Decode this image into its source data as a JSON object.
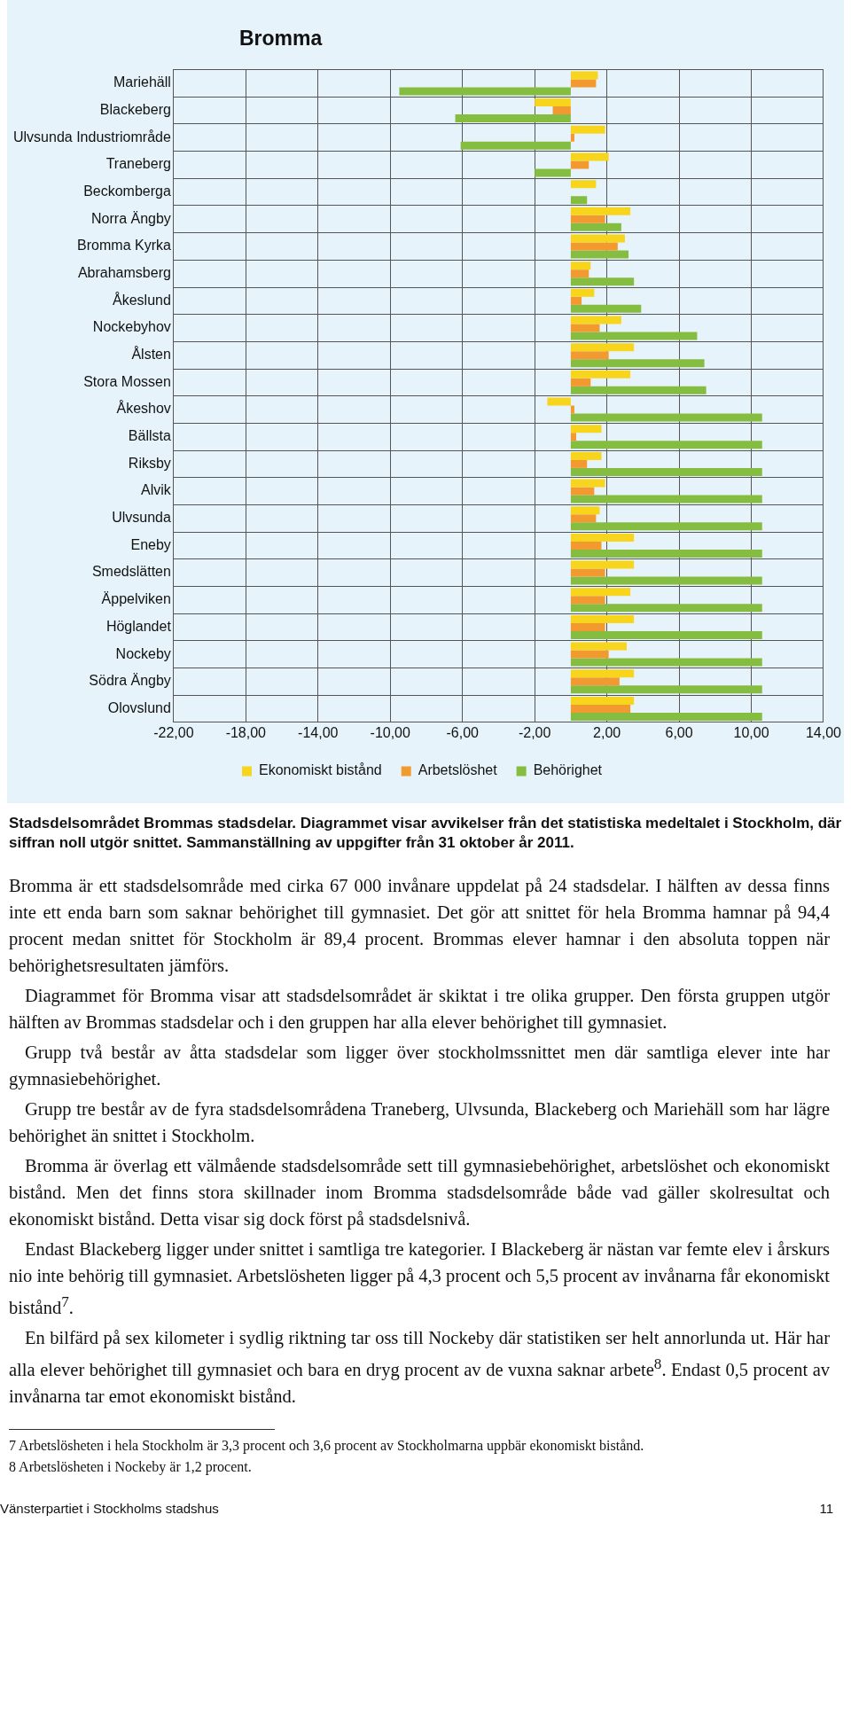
{
  "chart_data": {
    "type": "bar",
    "orientation": "horizontal",
    "title": "Bromma",
    "categories": [
      "Mariehäll",
      "Blackeberg",
      "Ulvsunda Industriområde",
      "Traneberg",
      "Beckomberga",
      "Norra Ängby",
      "Bromma Kyrka",
      "Abrahamsberg",
      "Åkeslund",
      "Nockebyhov",
      "Ålsten",
      "Stora Mossen",
      "Åkeshov",
      "Bällsta",
      "Riksby",
      "Alvik",
      "Ulvsunda",
      "Eneby",
      "Smedslätten",
      "Äppelviken",
      "Höglandet",
      "Nockeby",
      "Södra Ängby",
      "Olovslund"
    ],
    "series": [
      {
        "name": "Ekonomiskt bistånd",
        "color": "#f7d51d",
        "values": [
          1.5,
          -2.0,
          1.9,
          2.1,
          1.4,
          3.3,
          3.0,
          1.1,
          1.3,
          2.8,
          3.5,
          3.3,
          -1.3,
          1.7,
          1.7,
          1.9,
          1.6,
          3.5,
          3.5,
          3.3,
          3.5,
          3.1,
          3.5,
          3.5
        ]
      },
      {
        "name": "Arbetslöshet",
        "color": "#f29a30",
        "values": [
          1.4,
          -1.0,
          0.2,
          1.0,
          0,
          1.9,
          2.6,
          1.0,
          0.6,
          1.6,
          2.1,
          1.1,
          0.2,
          0.3,
          0.9,
          1.3,
          1.4,
          1.7,
          1.9,
          1.9,
          1.9,
          2.1,
          2.7,
          3.3
        ]
      },
      {
        "name": "Behörighet",
        "color": "#84bd3f",
        "values": [
          -9.5,
          -6.4,
          -6.1,
          -2.0,
          0.9,
          2.8,
          3.2,
          3.5,
          3.9,
          7.0,
          7.4,
          7.5,
          10.6,
          10.6,
          10.6,
          10.6,
          10.6,
          10.6,
          10.6,
          10.6,
          10.6,
          10.6,
          10.6,
          10.6
        ]
      }
    ],
    "xlim": [
      -22,
      14
    ],
    "xticks": [
      {
        "value": -22,
        "label": "-22,00"
      },
      {
        "value": -18,
        "label": "-18,00"
      },
      {
        "value": -14,
        "label": "-14,00"
      },
      {
        "value": -10,
        "label": "-10,00"
      },
      {
        "value": -6,
        "label": "-6,00"
      },
      {
        "value": -2,
        "label": "-2,00"
      },
      {
        "value": 2,
        "label": "2,00"
      },
      {
        "value": 6,
        "label": "6,00"
      },
      {
        "value": 10,
        "label": "10,00"
      },
      {
        "value": 14,
        "label": "14,00"
      }
    ],
    "grid": true,
    "legend": "bottom",
    "annotations": [
      "Stadsdelsområdet Brommas stadsdelar. Diagrammet visar avvikelser från det statistiska medeltalet i Stockholm, där siffran noll utgör snittet. Sammanställning av uppgifter från 31 oktober år 2011.",
      "Bromma är ett stadsdelsområde med cirka 67 000 invånare uppdelat på 24 stadsdelar. I hälften av dessa finns inte ett enda barn som saknar behörighet till gymnasiet. Det gör att snittet för hela Bromma hamnar på 94,4 procent medan snittet för Stockholm är 89,4 procent. Brommas elever hamnar i den absoluta toppen när behörighetsresultaten jämförs.",
      "Diagrammet för Bromma visar att stadsdelsområdet är skiktat i tre olika grupper. Den första gruppen utgör hälften av Brommas stadsdelar och i den gruppen har alla elever behörighet till gymnasiet.",
      "Grupp två består av åtta stadsdelar som ligger över stockholmssnittet men där samtliga elever inte har gymnasiebehörighet.",
      "Grupp tre består av de fyra stadsdelsområdena Traneberg, Ulvsunda, Blackeberg och Mariehäll som har lägre behörighet än snittet i Stockholm.",
      "Bromma är överlag ett välmående stadsdelsområde sett till gymnasiebehörighet, arbetslöshet och ekonomiskt bistånd. Men det finns stora skillnader inom Bromma stadsdelsområde både vad gäller skolresultat och ekonomiskt bistånd. Detta visar sig dock först på stadsdelsnivå.",
      "Endast Blackeberg ligger under snittet i samtliga tre kategorier. I Blackeberg är nästan var femte elev i årskurs nio inte behörig till gymnasiet. Arbetslösheten ligger på 4,3 procent och 5,5 procent av invånarna får ekonomiskt bistånd$^{7}$.",
      "En bilfärd på sex kilometer i sydlig riktning tar oss till Nockeby där statistiken ser helt annorlunda ut. Här har alla elever behörighet till gymnasiet och bara en dryg procent av de vuxna saknar arbete$^{8}$. Endast 0,5 procent av invånarna tar emot ekonomiskt bistånd.",
      "7 Arbetslösheten i hela Stockholm är 3,3 procent och 3,6 procent av Stockholmarna uppbär ekonomiskt bistånd.",
      "8 Arbetslösheten i Nockeby är 1,2 procent.",
      "Vänsterpartiet i Stockholms stadshus",
      "11"
    ]
  }
}
